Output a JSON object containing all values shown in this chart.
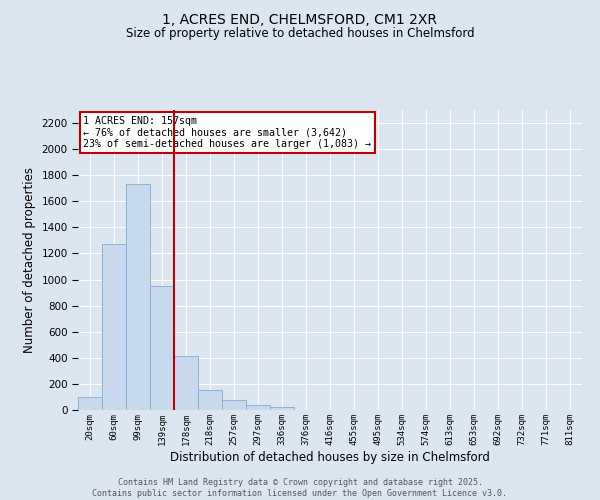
{
  "title": "1, ACRES END, CHELMSFORD, CM1 2XR",
  "subtitle": "Size of property relative to detached houses in Chelmsford",
  "xlabel": "Distribution of detached houses by size in Chelmsford",
  "ylabel": "Number of detached properties",
  "bin_labels": [
    "20sqm",
    "60sqm",
    "99sqm",
    "139sqm",
    "178sqm",
    "218sqm",
    "257sqm",
    "297sqm",
    "336sqm",
    "376sqm",
    "416sqm",
    "455sqm",
    "495sqm",
    "534sqm",
    "574sqm",
    "613sqm",
    "653sqm",
    "692sqm",
    "732sqm",
    "771sqm",
    "811sqm"
  ],
  "bar_values": [
    100,
    1270,
    1730,
    950,
    415,
    155,
    80,
    40,
    20,
    0,
    0,
    0,
    0,
    0,
    0,
    0,
    0,
    0,
    0,
    0,
    0
  ],
  "bar_color": "#c9d9ed",
  "bar_edge_color": "#7bafd4",
  "vline_x": 3.5,
  "vline_color": "#c00000",
  "annotation_text": "1 ACRES END: 157sqm\n← 76% of detached houses are smaller (3,642)\n23% of semi-detached houses are larger (1,083) →",
  "annotation_box_color": "#ffffff",
  "annotation_box_edge": "#c00000",
  "ylim": [
    0,
    2300
  ],
  "yticks": [
    0,
    200,
    400,
    600,
    800,
    1000,
    1200,
    1400,
    1600,
    1800,
    2000,
    2200
  ],
  "bg_color": "#dce6f1",
  "plot_bg_color": "#dce6f1",
  "grid_color": "#ffffff",
  "footer_line1": "Contains HM Land Registry data © Crown copyright and database right 2025.",
  "footer_line2": "Contains public sector information licensed under the Open Government Licence v3.0."
}
